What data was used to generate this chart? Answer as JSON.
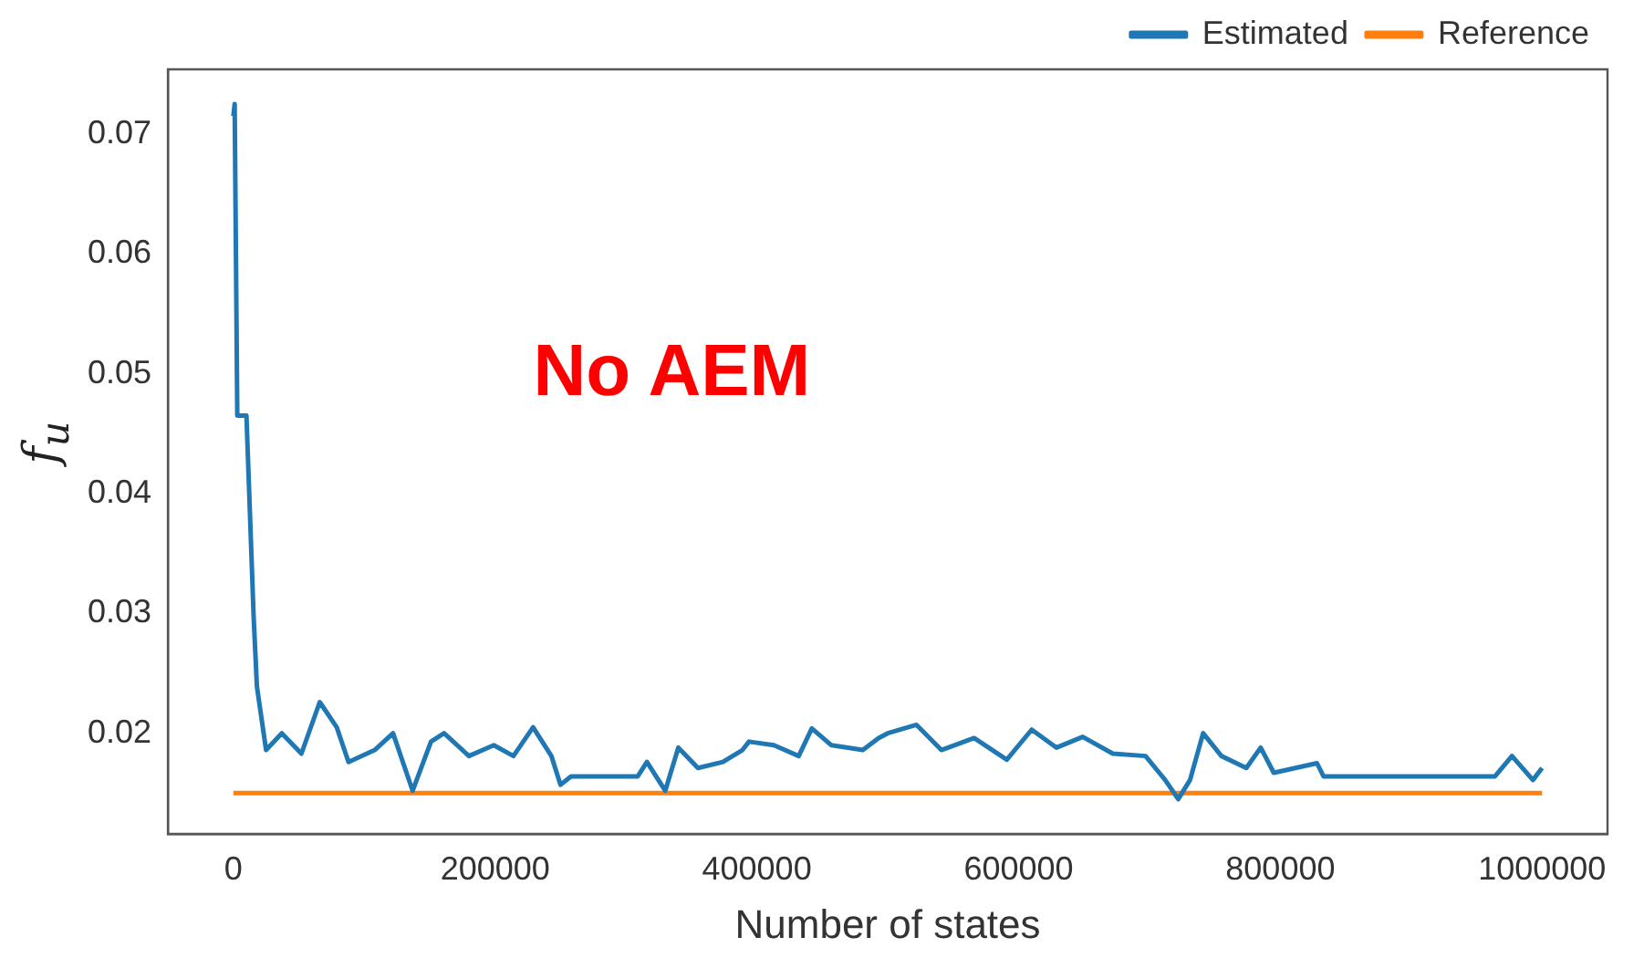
{
  "chart_data": {
    "type": "line",
    "xlabel": "Number of states",
    "ylabel": "f$_{u}$",
    "annotations": [
      "No AEM"
    ],
    "xlim": [
      -50000,
      1050000
    ],
    "xticks": [
      0,
      200000,
      400000,
      600000,
      800000,
      1000000
    ],
    "ylim": [
      0.0116,
      0.0754
    ],
    "yticks": [
      0.02,
      0.03,
      0.04,
      0.05,
      0.06,
      0.07
    ],
    "grid": false,
    "legend": "top right",
    "marker": "none",
    "line_style": "solid",
    "series": [
      {
        "name": "Estimated",
        "color": "#1f77b4",
        "x": [
          0,
          1000,
          3000,
          10000,
          15500,
          18000,
          25000,
          37000,
          52000,
          66000,
          79000,
          88000,
          108000,
          122000,
          137000,
          151000,
          161000,
          180000,
          199000,
          214000,
          229000,
          243000,
          250000,
          258000,
          309000,
          316000,
          330000,
          340000,
          355000,
          374000,
          389000,
          394000,
          413000,
          432000,
          442000,
          457000,
          481000,
          493000,
          500000,
          522000,
          541000,
          566000,
          591000,
          610000,
          629000,
          649000,
          672000,
          697000,
          712000,
          722000,
          731000,
          741000,
          755000,
          774000,
          785000,
          795000,
          828000,
          833000,
          964000,
          977000,
          993000,
          1000000
        ],
        "values": [
          0.0715,
          0.0725,
          0.0465,
          0.0465,
          0.0297,
          0.0239,
          0.0186,
          0.02,
          0.0183,
          0.0226,
          0.0205,
          0.0176,
          0.0186,
          0.02,
          0.0152,
          0.0193,
          0.02,
          0.0181,
          0.019,
          0.0181,
          0.0205,
          0.0181,
          0.0157,
          0.0164,
          0.0164,
          0.0176,
          0.0152,
          0.0188,
          0.0171,
          0.0176,
          0.0186,
          0.0193,
          0.019,
          0.0181,
          0.0204,
          0.019,
          0.0186,
          0.0196,
          0.02,
          0.0207,
          0.0186,
          0.0196,
          0.0178,
          0.0203,
          0.0188,
          0.0197,
          0.0183,
          0.0181,
          0.0161,
          0.0145,
          0.0161,
          0.02,
          0.0181,
          0.0171,
          0.0188,
          0.0167,
          0.0175,
          0.0164,
          0.0164,
          0.0181,
          0.0161,
          0.0171
        ]
      },
      {
        "name": "Reference",
        "color": "#ff7f0e",
        "x": [
          0,
          1000000
        ],
        "values": [
          0.015,
          0.015
        ]
      }
    ]
  }
}
